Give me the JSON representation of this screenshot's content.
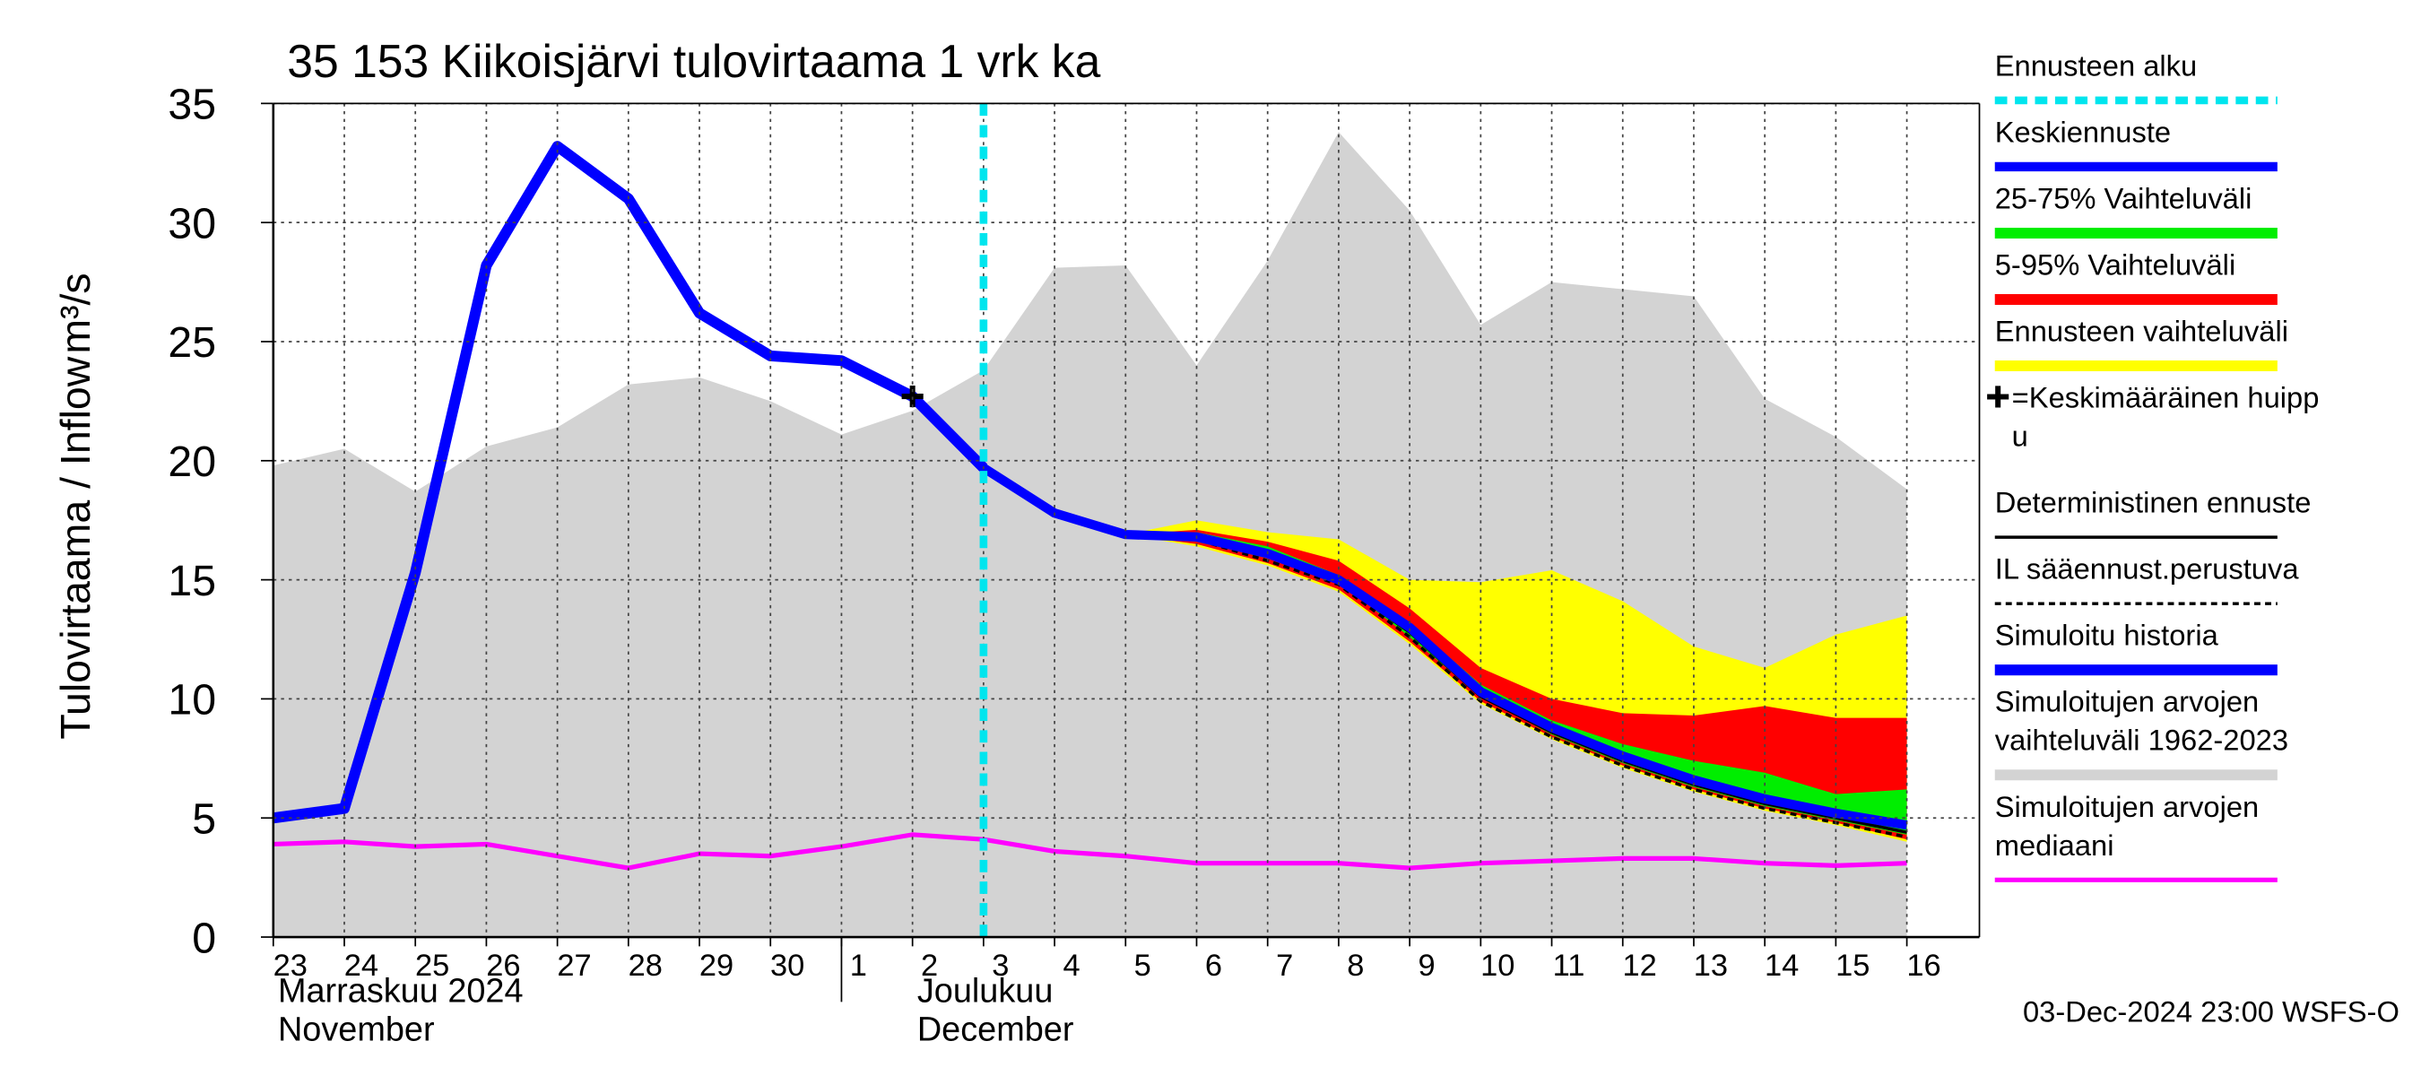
{
  "chart_data": {
    "type": "line",
    "title": "35 153 Kiikoisjärvi tulovirtaama 1 vrk ka",
    "y_label": "Tulovirtaama / Inflow",
    "y_unit": "m³/s",
    "footer": "03-Dec-2024 23:00 WSFS-O",
    "months": [
      {
        "label": "Marraskuu 2024\nNovember",
        "at": "23"
      },
      {
        "label": "Joulukuu\nDecember",
        "at": "2"
      }
    ],
    "categories": [
      "23",
      "24",
      "25",
      "26",
      "27",
      "28",
      "29",
      "30",
      "1",
      "2",
      "3",
      "4",
      "5",
      "6",
      "7",
      "8",
      "9",
      "10",
      "11",
      "12",
      "13",
      "14",
      "15",
      "16"
    ],
    "ylim": [
      0,
      35
    ],
    "yticks": [
      0,
      5,
      10,
      15,
      20,
      25,
      30,
      35
    ],
    "grid": true,
    "legend": "right",
    "series": [
      {
        "name": "Ennusteen alku",
        "kind": "vline",
        "color": "#00e5ee",
        "at": "3"
      },
      {
        "name": "Keskiennuste",
        "kind": "line",
        "color": "#0000ff",
        "width": 6,
        "values": [
          null,
          null,
          null,
          null,
          null,
          null,
          null,
          null,
          24.2,
          22.7,
          19.7,
          17.8,
          16.9,
          16.8,
          16.1,
          15.0,
          13.0,
          10.3,
          8.8,
          7.6,
          6.6,
          5.8,
          5.2,
          4.7
        ]
      },
      {
        "name": "25-75% Vaihteluväli",
        "kind": "band",
        "color": "#00ee00",
        "high": [
          null,
          null,
          null,
          null,
          null,
          null,
          null,
          null,
          null,
          null,
          null,
          null,
          16.9,
          17.0,
          16.4,
          15.2,
          13.2,
          10.6,
          9.1,
          8.1,
          7.4,
          6.9,
          6.0,
          6.2
        ],
        "low": [
          null,
          null,
          null,
          null,
          null,
          null,
          null,
          null,
          null,
          null,
          null,
          null,
          16.9,
          16.6,
          15.9,
          14.9,
          12.6,
          10.1,
          8.5,
          7.3,
          6.3,
          5.5,
          4.9,
          4.3
        ]
      },
      {
        "name": "5-95% Vaihteluväli",
        "kind": "band",
        "color": "#ff0000",
        "high": [
          null,
          null,
          null,
          null,
          null,
          null,
          null,
          null,
          null,
          null,
          null,
          null,
          16.9,
          17.1,
          16.6,
          15.8,
          13.8,
          11.3,
          10.0,
          9.4,
          9.3,
          9.7,
          9.2,
          9.2
        ],
        "low": [
          null,
          null,
          null,
          null,
          null,
          null,
          null,
          null,
          null,
          null,
          null,
          null,
          16.9,
          16.5,
          15.7,
          14.6,
          12.4,
          9.9,
          8.4,
          7.2,
          6.2,
          5.4,
          4.8,
          4.1
        ]
      },
      {
        "name": "Ennusteen vaihteluväli",
        "kind": "band",
        "color": "#ffff00",
        "high": [
          null,
          null,
          null,
          null,
          null,
          null,
          null,
          null,
          null,
          null,
          null,
          null,
          16.9,
          17.5,
          17.0,
          16.7,
          15.0,
          14.9,
          15.4,
          14.1,
          12.2,
          11.3,
          12.7,
          13.5
        ],
        "low": [
          null,
          null,
          null,
          null,
          null,
          null,
          null,
          null,
          null,
          null,
          null,
          null,
          16.9,
          16.4,
          15.6,
          14.5,
          12.3,
          9.8,
          8.3,
          7.1,
          6.1,
          5.3,
          4.7,
          4.0
        ]
      },
      {
        "name": "=Keskimääräinen huipp\nu",
        "kind": "marker",
        "color": "#000000",
        "at": "2",
        "value": 22.7
      },
      {
        "name": "Deterministinen ennuste",
        "kind": "line",
        "color": "#000000",
        "width": 2,
        "values": [
          null,
          null,
          null,
          null,
          null,
          null,
          null,
          null,
          24.2,
          22.7,
          19.7,
          17.8,
          16.9,
          16.9,
          16.0,
          14.9,
          12.8,
          10.1,
          8.6,
          7.4,
          6.4,
          5.6,
          5.0,
          4.4
        ]
      },
      {
        "name": "IL sääennust.perustuva",
        "kind": "line",
        "color": "#000000",
        "width": 2,
        "dashed": true,
        "values": [
          null,
          null,
          null,
          null,
          null,
          null,
          null,
          null,
          null,
          null,
          null,
          null,
          16.9,
          16.7,
          15.8,
          14.8,
          12.6,
          9.9,
          8.4,
          7.2,
          6.2,
          5.4,
          4.8,
          4.2
        ]
      },
      {
        "name": "Simuloitu historia",
        "kind": "line",
        "color": "#0000ff",
        "width": 7,
        "values": [
          5.0,
          5.4,
          15.3,
          28.2,
          33.2,
          31.0,
          26.2,
          24.4,
          24.2,
          22.7,
          19.7,
          null,
          null,
          null,
          null,
          null,
          null,
          null,
          null,
          null,
          null,
          null,
          null,
          null
        ]
      },
      {
        "name": "Simuloitujen arvojen\nvaihteluväli 1962-2023",
        "kind": "band",
        "color": "#d3d3d3",
        "high": [
          19.8,
          20.5,
          18.7,
          20.6,
          21.4,
          23.2,
          23.5,
          22.5,
          21.1,
          22.1,
          23.8,
          28.1,
          28.2,
          24.0,
          28.4,
          33.8,
          30.5,
          25.7,
          27.5,
          27.2,
          26.9,
          22.6,
          21.0,
          18.8
        ],
        "low": [
          0,
          0,
          0,
          0,
          0,
          0,
          0,
          0,
          0,
          0,
          0,
          0,
          0,
          0,
          0,
          0,
          0,
          0,
          0,
          0,
          0,
          0,
          0,
          0
        ]
      },
      {
        "name": "Simuloitujen arvojen\nmediaani",
        "kind": "line",
        "color": "#ff00ff",
        "width": 3,
        "values": [
          3.9,
          4.0,
          3.8,
          3.9,
          3.4,
          2.9,
          3.5,
          3.4,
          3.8,
          4.3,
          4.1,
          3.6,
          3.4,
          3.1,
          3.1,
          3.1,
          2.9,
          3.1,
          3.2,
          3.3,
          3.3,
          3.1,
          3.0,
          3.1
        ]
      }
    ]
  }
}
